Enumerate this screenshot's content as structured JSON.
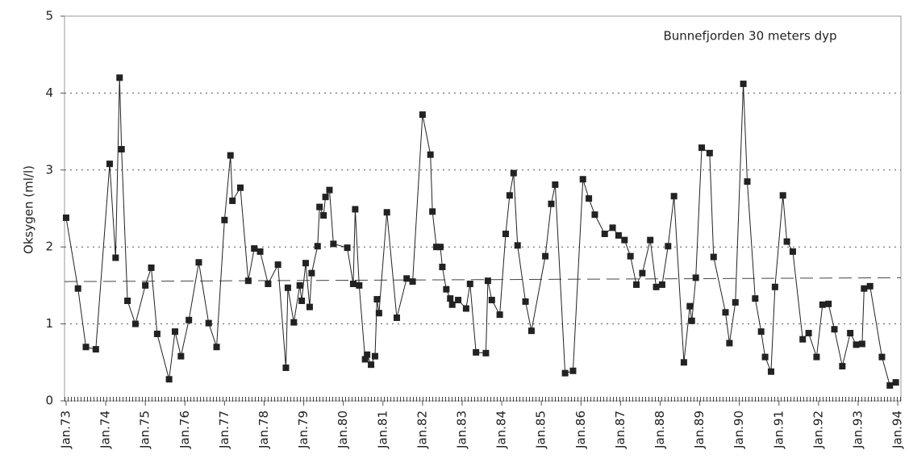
{
  "chart_data": {
    "type": "line",
    "annotation": "Bunnefjorden 30 meters dyp",
    "y_label": "Oksygen (ml/l)",
    "x": [
      73.0,
      73.3,
      73.5,
      73.75,
      74.1,
      74.25,
      74.35,
      74.4,
      74.55,
      74.75,
      75.0,
      75.15,
      75.3,
      75.6,
      75.75,
      75.9,
      76.1,
      76.35,
      76.6,
      76.8,
      77.0,
      77.15,
      77.2,
      77.4,
      77.6,
      77.75,
      77.9,
      78.1,
      78.35,
      78.55,
      78.6,
      78.75,
      78.9,
      78.95,
      79.05,
      79.15,
      79.2,
      79.35,
      79.4,
      79.5,
      79.55,
      79.65,
      79.75,
      80.1,
      80.25,
      80.3,
      80.4,
      80.55,
      80.6,
      80.7,
      80.8,
      80.85,
      80.9,
      81.1,
      81.35,
      81.6,
      81.75,
      82.0,
      82.2,
      82.25,
      82.35,
      82.45,
      82.5,
      82.6,
      82.7,
      82.75,
      82.9,
      83.1,
      83.2,
      83.35,
      83.6,
      83.65,
      83.75,
      83.95,
      84.1,
      84.2,
      84.3,
      84.4,
      84.6,
      84.75,
      85.1,
      85.25,
      85.35,
      85.6,
      85.8,
      86.05,
      86.2,
      86.35,
      86.6,
      86.8,
      86.95,
      87.1,
      87.25,
      87.4,
      87.55,
      87.75,
      87.9,
      88.05,
      88.2,
      88.35,
      88.6,
      88.75,
      88.8,
      88.9,
      89.05,
      89.25,
      89.35,
      89.65,
      89.75,
      89.9,
      90.1,
      90.2,
      90.4,
      90.55,
      90.65,
      90.8,
      90.9,
      91.1,
      91.2,
      91.35,
      91.6,
      91.75,
      91.95,
      92.1,
      92.25,
      92.4,
      92.6,
      92.8,
      92.95,
      93.1,
      93.15,
      93.3,
      93.6,
      93.8,
      93.95
    ],
    "series": [
      {
        "name": "Oksygen",
        "color": "#222222",
        "values": [
          2.38,
          1.46,
          0.7,
          0.67,
          3.08,
          1.86,
          4.2,
          3.27,
          1.3,
          1.0,
          1.5,
          1.73,
          0.87,
          0.28,
          0.9,
          0.58,
          1.05,
          1.8,
          1.01,
          0.7,
          2.35,
          3.19,
          2.6,
          2.77,
          1.56,
          1.98,
          1.94,
          1.52,
          1.77,
          0.43,
          1.47,
          1.02,
          1.5,
          1.3,
          1.79,
          1.22,
          1.66,
          2.01,
          2.52,
          2.41,
          2.65,
          2.74,
          2.04,
          1.99,
          1.52,
          2.49,
          1.5,
          0.54,
          0.6,
          0.47,
          0.58,
          1.32,
          1.14,
          2.45,
          1.08,
          1.59,
          1.55,
          3.72,
          3.2,
          2.46,
          2.0,
          2.0,
          1.74,
          1.45,
          1.33,
          1.25,
          1.31,
          1.2,
          1.52,
          0.63,
          0.62,
          1.56,
          1.31,
          1.12,
          2.17,
          2.67,
          2.96,
          2.02,
          1.29,
          0.91,
          1.88,
          2.56,
          2.81,
          0.36,
          0.39,
          2.88,
          2.63,
          2.42,
          2.17,
          2.25,
          2.15,
          2.09,
          1.88,
          1.51,
          1.66,
          2.09,
          1.48,
          1.51,
          2.01,
          2.66,
          0.5,
          1.23,
          1.04,
          1.6,
          3.29,
          3.22,
          1.87,
          1.15,
          0.75,
          1.28,
          4.12,
          2.85,
          1.33,
          0.9,
          0.57,
          0.38,
          1.48,
          2.67,
          2.07,
          1.94,
          0.8,
          0.88,
          0.57,
          1.25,
          1.26,
          0.93,
          0.45,
          0.88,
          0.73,
          0.74,
          1.46,
          1.49,
          0.57,
          0.2,
          0.24
        ]
      }
    ],
    "trend_line": {
      "x": [
        72.96,
        94.08
      ],
      "values": [
        1.55,
        1.6
      ]
    },
    "xlim": [
      72.96,
      94.08
    ],
    "xticks": [
      {
        "value": 73,
        "label": "Jan.73"
      },
      {
        "value": 74,
        "label": "Jan.74"
      },
      {
        "value": 75,
        "label": "Jan.75"
      },
      {
        "value": 76,
        "label": "Jan.76"
      },
      {
        "value": 77,
        "label": "Jan.77"
      },
      {
        "value": 78,
        "label": "Jan.78"
      },
      {
        "value": 79,
        "label": "Jan.79"
      },
      {
        "value": 80,
        "label": "Jan.80"
      },
      {
        "value": 81,
        "label": "Jan.81"
      },
      {
        "value": 82,
        "label": "Jan.82"
      },
      {
        "value": 83,
        "label": "Jan.83"
      },
      {
        "value": 84,
        "label": "Jan.84"
      },
      {
        "value": 85,
        "label": "Jan.85"
      },
      {
        "value": 86,
        "label": "Jan.86"
      },
      {
        "value": 87,
        "label": "Jan.87"
      },
      {
        "value": 88,
        "label": "Jan.88"
      },
      {
        "value": 89,
        "label": "Jan.89"
      },
      {
        "value": 90,
        "label": "Jan.90"
      },
      {
        "value": 91,
        "label": "Jan.91"
      },
      {
        "value": 92,
        "label": "Jan.92"
      },
      {
        "value": 93,
        "label": "Jan.93"
      },
      {
        "value": 94,
        "label": "Jan.94"
      }
    ],
    "ylim": [
      0,
      5
    ],
    "yticks": [
      0,
      1,
      2,
      3,
      4,
      5
    ],
    "grid": true
  }
}
